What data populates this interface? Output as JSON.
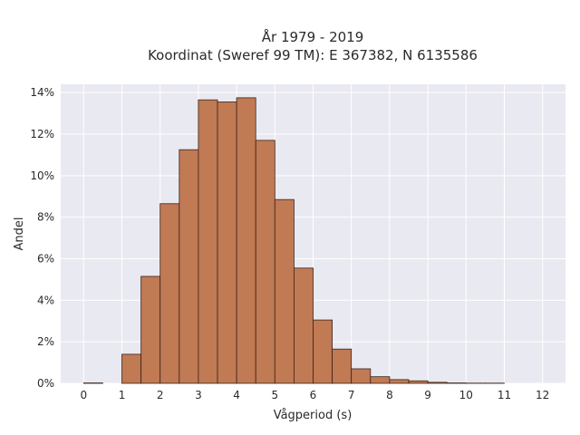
{
  "chart_data": {
    "type": "bar",
    "title_line1": "År 1979 - 2019",
    "title_line2": "Koordinat (Sweref 99 TM): E 367382, N 6135586",
    "xlabel": "Vågperiod (s)",
    "ylabel": "Andel",
    "xlim": [
      -0.6,
      12.6
    ],
    "ylim": [
      0,
      14.4
    ],
    "xticks": [
      "0",
      "1",
      "2",
      "3",
      "4",
      "5",
      "6",
      "7",
      "8",
      "9",
      "10",
      "11",
      "12"
    ],
    "yticks": [
      "0%",
      "2%",
      "4%",
      "6%",
      "8%",
      "10%",
      "12%",
      "14%"
    ],
    "bin_width": 0.5,
    "bins": [
      {
        "x0": 0.0,
        "value": 0.02
      },
      {
        "x0": 0.5,
        "value": 0.0
      },
      {
        "x0": 1.0,
        "value": 1.4
      },
      {
        "x0": 1.5,
        "value": 5.15
      },
      {
        "x0": 2.0,
        "value": 8.65
      },
      {
        "x0": 2.5,
        "value": 11.25
      },
      {
        "x0": 3.0,
        "value": 13.65
      },
      {
        "x0": 3.5,
        "value": 13.55
      },
      {
        "x0": 4.0,
        "value": 13.75
      },
      {
        "x0": 4.5,
        "value": 11.7
      },
      {
        "x0": 5.0,
        "value": 8.85
      },
      {
        "x0": 5.5,
        "value": 5.55
      },
      {
        "x0": 6.0,
        "value": 3.05
      },
      {
        "x0": 6.5,
        "value": 1.65
      },
      {
        "x0": 7.0,
        "value": 0.7
      },
      {
        "x0": 7.5,
        "value": 0.32
      },
      {
        "x0": 8.0,
        "value": 0.18
      },
      {
        "x0": 8.5,
        "value": 0.12
      },
      {
        "x0": 9.0,
        "value": 0.05
      },
      {
        "x0": 9.5,
        "value": 0.02
      },
      {
        "x0": 10.0,
        "value": 0.01
      },
      {
        "x0": 10.5,
        "value": 0.01
      }
    ],
    "grid": true,
    "colors": {
      "bar_fill": "#c07a54",
      "bar_edge": "#3a2418",
      "plot_background": "#e9e9f1",
      "grid": "#ffffff",
      "text": "#2a2a2a"
    }
  }
}
